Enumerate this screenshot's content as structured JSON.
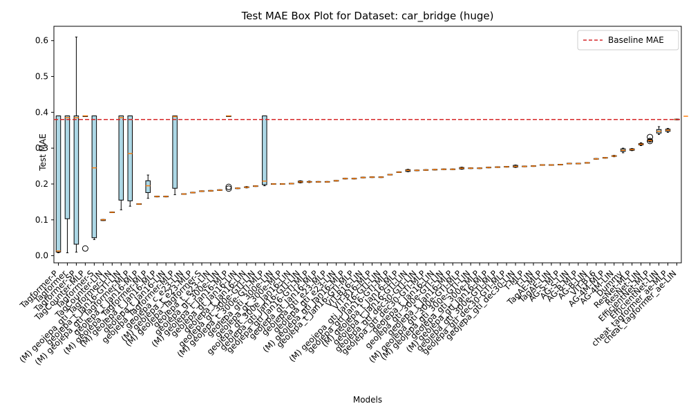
{
  "chart_data": {
    "type": "box",
    "title": "Test MAE Box Plot for Dataset: car_bridge (huge)",
    "xlabel": "Models",
    "ylabel": "Test MAE",
    "ylim": [
      -0.02,
      0.64
    ],
    "yticks": [
      "0.0",
      "0.1",
      "0.2",
      "0.3",
      "0.4",
      "0.5",
      "0.6"
    ],
    "ytick_values": [
      0.0,
      0.1,
      0.2,
      0.3,
      0.4,
      0.5,
      0.6
    ],
    "baseline": {
      "label": "Baseline MAE",
      "value": 0.38,
      "color": "#d62728"
    },
    "legend_position": "top-right",
    "box_fill": "#add8e6",
    "median_color": "#ff7f0e",
    "categories": [
      "Tagformer-P",
      "Tagformer",
      "Tagformer-SP",
      "TagCounter-MLP",
      "Tagformer-S",
      "TagCounter-LIN",
      "(M) geojepa_gti_Tagformer-LIN",
      "geojepa_t_Jan16-GTI-LIN",
      "(M) geojepa_gti_Tagformer-MLP",
      "geojepa_t_Jan16-MLP",
      "(M) geojepa_Tagformer-MLP",
      "(M) geojepa_t_Jan16-MLP",
      "geojepa_t_Jan16-LIN",
      "geojepa_Tagformer-MLP",
      "geojepa_c_e23-LIN",
      "(M) geojepa_t_e23-MLP",
      "(M) geojepa_Tagformer-S",
      "geojepa_t_e23-LIN",
      "geojepa_gt_300e-LIN",
      "(M) geojepa_t_Jan16-MLP",
      "geojepa_gt_Jan16-LIN",
      "geojepa_t_Jan16-LIN",
      "geojepa_gt_300e-GTI-LIN",
      "(M) geojepa_t_300e-GTI-MLP",
      "geojepa_gti_300e-LIN",
      "geojepa_gt_300e-MLP",
      "geojepa_gt_300e_Jan16-LIN",
      "geojepa_gti_Jan16-GTI-LIN",
      "geojepa_gti_Jan16-GTI-MLP",
      "geojepa_gt_Jan16-MLP",
      "geojepa_gti_e23-MLP",
      "geojepa_gti_e23-LIN",
      "(M) geojepa_gti_Jan16-MLP",
      "geojepa_t_Jan16-GTI-MLP",
      "VIT-B16-LIN",
      "VIT-B16-MLP",
      "(M) geojepa_gti_Jan16-GTI-LIN",
      "geojepa_gti_Jan16-GTI-MLP",
      "(M) geojepa_t_Jan16-MLP",
      "geojepa_t_Jan16-GTI-LIN",
      "geojepa_gti_dec30-GTI-LIN",
      "geojepa_gti_dec30-GTI-MLP",
      "geojepa_t_Jan16-LIN",
      "geojepa_gti_300e-GTI-LIN",
      "geojepa_t_Jan16-MLP",
      "(M) geojepa_gti_300e-GTI-MLP",
      "(M) geojepa_gti_300e-GTI-LIN",
      "geojepa_gti_300e-MLP",
      "(M) geojepa_gti_Jan16-MLP",
      "geojepa_gti_300e-GTI-MLP",
      "geojepa_gti_dec30-GTI-MLP",
      "geojepa_gti_dec30-LIN",
      "T-MLP",
      "T-LIN",
      "TagAE-MLP",
      "TagAE-LIN",
      "AG-S-MLP",
      "AG-S-LIN",
      "AG-B-MLP",
      "AG-B-LIN",
      "VIT-B16",
      "AG-4M-MLP",
      "AG-4M-LIN",
      "Dummy",
      "ResNet-MLP",
      "ResNet-LIN",
      "EfficientNet-MLP",
      "EfficientNet-LIN",
      "cheat_tagformer_ae-MLP",
      "cheat_tagformer_ae-LIN"
    ],
    "boxes": [
      {
        "q1": 0.01,
        "med": 0.013,
        "q3": 0.39,
        "wlo": 0.008,
        "whi": 0.39,
        "fliers": []
      },
      {
        "q1": 0.103,
        "med": 0.385,
        "q3": 0.39,
        "wlo": 0.008,
        "whi": 0.39,
        "fliers": []
      },
      {
        "q1": 0.032,
        "med": 0.385,
        "q3": 0.39,
        "wlo": 0.01,
        "whi": 0.61,
        "fliers": []
      },
      {
        "q1": 0.39,
        "med": 0.39,
        "q3": 0.39,
        "wlo": 0.39,
        "whi": 0.39,
        "fliers": [
          0.02
        ]
      },
      {
        "q1": 0.05,
        "med": 0.245,
        "q3": 0.39,
        "wlo": 0.045,
        "whi": 0.39,
        "fliers": []
      },
      {
        "q1": 0.098,
        "med": 0.1,
        "q3": 0.101,
        "wlo": 0.098,
        "whi": 0.101,
        "fliers": []
      },
      {
        "q1": 0.12,
        "med": 0.121,
        "q3": 0.122,
        "wlo": 0.12,
        "whi": 0.122,
        "fliers": []
      },
      {
        "q1": 0.155,
        "med": 0.385,
        "q3": 0.39,
        "wlo": 0.128,
        "whi": 0.39,
        "fliers": []
      },
      {
        "q1": 0.153,
        "med": 0.285,
        "q3": 0.39,
        "wlo": 0.138,
        "whi": 0.39,
        "fliers": []
      },
      {
        "q1": 0.143,
        "med": 0.144,
        "q3": 0.145,
        "wlo": 0.143,
        "whi": 0.145,
        "fliers": []
      },
      {
        "q1": 0.176,
        "med": 0.195,
        "q3": 0.209,
        "wlo": 0.16,
        "whi": 0.225,
        "fliers": []
      },
      {
        "q1": 0.164,
        "med": 0.165,
        "q3": 0.166,
        "wlo": 0.164,
        "whi": 0.166,
        "fliers": []
      },
      {
        "q1": 0.164,
        "med": 0.165,
        "q3": 0.166,
        "wlo": 0.164,
        "whi": 0.166,
        "fliers": []
      },
      {
        "q1": 0.188,
        "med": 0.388,
        "q3": 0.39,
        "wlo": 0.17,
        "whi": 0.39,
        "fliers": []
      },
      {
        "q1": 0.171,
        "med": 0.172,
        "q3": 0.173,
        "wlo": 0.171,
        "whi": 0.173,
        "fliers": []
      },
      {
        "q1": 0.175,
        "med": 0.176,
        "q3": 0.177,
        "wlo": 0.175,
        "whi": 0.177,
        "fliers": []
      },
      {
        "q1": 0.179,
        "med": 0.18,
        "q3": 0.181,
        "wlo": 0.179,
        "whi": 0.181,
        "fliers": []
      },
      {
        "q1": 0.18,
        "med": 0.181,
        "q3": 0.182,
        "wlo": 0.18,
        "whi": 0.182,
        "fliers": []
      },
      {
        "q1": 0.182,
        "med": 0.183,
        "q3": 0.184,
        "wlo": 0.182,
        "whi": 0.184,
        "fliers": []
      },
      {
        "q1": 0.39,
        "med": 0.39,
        "q3": 0.39,
        "wlo": 0.39,
        "whi": 0.39,
        "fliers": [
          0.187,
          0.192
        ]
      },
      {
        "q1": 0.187,
        "med": 0.188,
        "q3": 0.189,
        "wlo": 0.187,
        "whi": 0.189,
        "fliers": []
      },
      {
        "q1": 0.19,
        "med": 0.191,
        "q3": 0.192,
        "wlo": 0.189,
        "whi": 0.193,
        "fliers": []
      },
      {
        "q1": 0.193,
        "med": 0.194,
        "q3": 0.195,
        "wlo": 0.193,
        "whi": 0.195,
        "fliers": []
      },
      {
        "q1": 0.198,
        "med": 0.208,
        "q3": 0.39,
        "wlo": 0.195,
        "whi": 0.39,
        "fliers": []
      },
      {
        "q1": 0.199,
        "med": 0.2,
        "q3": 0.201,
        "wlo": 0.199,
        "whi": 0.201,
        "fliers": []
      },
      {
        "q1": 0.199,
        "med": 0.2,
        "q3": 0.201,
        "wlo": 0.199,
        "whi": 0.201,
        "fliers": []
      },
      {
        "q1": 0.2,
        "med": 0.201,
        "q3": 0.202,
        "wlo": 0.2,
        "whi": 0.202,
        "fliers": []
      },
      {
        "q1": 0.204,
        "med": 0.206,
        "q3": 0.208,
        "wlo": 0.203,
        "whi": 0.209,
        "fliers": []
      },
      {
        "q1": 0.205,
        "med": 0.206,
        "q3": 0.207,
        "wlo": 0.204,
        "whi": 0.208,
        "fliers": []
      },
      {
        "q1": 0.205,
        "med": 0.206,
        "q3": 0.207,
        "wlo": 0.205,
        "whi": 0.207,
        "fliers": []
      },
      {
        "q1": 0.205,
        "med": 0.206,
        "q3": 0.207,
        "wlo": 0.205,
        "whi": 0.207,
        "fliers": []
      },
      {
        "q1": 0.208,
        "med": 0.209,
        "q3": 0.21,
        "wlo": 0.208,
        "whi": 0.21,
        "fliers": []
      },
      {
        "q1": 0.214,
        "med": 0.215,
        "q3": 0.216,
        "wlo": 0.214,
        "whi": 0.216,
        "fliers": []
      },
      {
        "q1": 0.214,
        "med": 0.215,
        "q3": 0.216,
        "wlo": 0.214,
        "whi": 0.216,
        "fliers": []
      },
      {
        "q1": 0.217,
        "med": 0.218,
        "q3": 0.219,
        "wlo": 0.217,
        "whi": 0.219,
        "fliers": []
      },
      {
        "q1": 0.218,
        "med": 0.219,
        "q3": 0.22,
        "wlo": 0.218,
        "whi": 0.22,
        "fliers": []
      },
      {
        "q1": 0.218,
        "med": 0.219,
        "q3": 0.22,
        "wlo": 0.218,
        "whi": 0.22,
        "fliers": []
      },
      {
        "q1": 0.225,
        "med": 0.226,
        "q3": 0.227,
        "wlo": 0.225,
        "whi": 0.227,
        "fliers": []
      },
      {
        "q1": 0.232,
        "med": 0.233,
        "q3": 0.234,
        "wlo": 0.232,
        "whi": 0.234,
        "fliers": []
      },
      {
        "q1": 0.235,
        "med": 0.238,
        "q3": 0.24,
        "wlo": 0.234,
        "whi": 0.241,
        "fliers": []
      },
      {
        "q1": 0.237,
        "med": 0.238,
        "q3": 0.239,
        "wlo": 0.237,
        "whi": 0.239,
        "fliers": []
      },
      {
        "q1": 0.238,
        "med": 0.239,
        "q3": 0.24,
        "wlo": 0.238,
        "whi": 0.24,
        "fliers": []
      },
      {
        "q1": 0.239,
        "med": 0.24,
        "q3": 0.241,
        "wlo": 0.239,
        "whi": 0.241,
        "fliers": []
      },
      {
        "q1": 0.24,
        "med": 0.241,
        "q3": 0.242,
        "wlo": 0.24,
        "whi": 0.242,
        "fliers": []
      },
      {
        "q1": 0.24,
        "med": 0.241,
        "q3": 0.242,
        "wlo": 0.24,
        "whi": 0.242,
        "fliers": []
      },
      {
        "q1": 0.242,
        "med": 0.244,
        "q3": 0.246,
        "wlo": 0.241,
        "whi": 0.247,
        "fliers": []
      },
      {
        "q1": 0.243,
        "med": 0.244,
        "q3": 0.245,
        "wlo": 0.243,
        "whi": 0.245,
        "fliers": []
      },
      {
        "q1": 0.243,
        "med": 0.244,
        "q3": 0.245,
        "wlo": 0.243,
        "whi": 0.245,
        "fliers": []
      },
      {
        "q1": 0.245,
        "med": 0.246,
        "q3": 0.247,
        "wlo": 0.245,
        "whi": 0.247,
        "fliers": []
      },
      {
        "q1": 0.246,
        "med": 0.247,
        "q3": 0.248,
        "wlo": 0.246,
        "whi": 0.248,
        "fliers": []
      },
      {
        "q1": 0.247,
        "med": 0.248,
        "q3": 0.249,
        "wlo": 0.247,
        "whi": 0.249,
        "fliers": []
      },
      {
        "q1": 0.247,
        "med": 0.249,
        "q3": 0.252,
        "wlo": 0.246,
        "whi": 0.253,
        "fliers": []
      },
      {
        "q1": 0.248,
        "med": 0.249,
        "q3": 0.25,
        "wlo": 0.248,
        "whi": 0.25,
        "fliers": []
      },
      {
        "q1": 0.249,
        "med": 0.25,
        "q3": 0.251,
        "wlo": 0.249,
        "whi": 0.251,
        "fliers": []
      },
      {
        "q1": 0.252,
        "med": 0.253,
        "q3": 0.254,
        "wlo": 0.252,
        "whi": 0.254,
        "fliers": []
      },
      {
        "q1": 0.252,
        "med": 0.253,
        "q3": 0.254,
        "wlo": 0.252,
        "whi": 0.254,
        "fliers": []
      },
      {
        "q1": 0.253,
        "med": 0.254,
        "q3": 0.255,
        "wlo": 0.253,
        "whi": 0.255,
        "fliers": []
      },
      {
        "q1": 0.256,
        "med": 0.257,
        "q3": 0.258,
        "wlo": 0.256,
        "whi": 0.258,
        "fliers": []
      },
      {
        "q1": 0.256,
        "med": 0.257,
        "q3": 0.258,
        "wlo": 0.256,
        "whi": 0.258,
        "fliers": []
      },
      {
        "q1": 0.258,
        "med": 0.259,
        "q3": 0.26,
        "wlo": 0.258,
        "whi": 0.26,
        "fliers": []
      },
      {
        "q1": 0.269,
        "med": 0.27,
        "q3": 0.271,
        "wlo": 0.269,
        "whi": 0.271,
        "fliers": []
      },
      {
        "q1": 0.272,
        "med": 0.273,
        "q3": 0.274,
        "wlo": 0.272,
        "whi": 0.274,
        "fliers": []
      },
      {
        "q1": 0.277,
        "med": 0.278,
        "q3": 0.279,
        "wlo": 0.276,
        "whi": 0.28,
        "fliers": []
      },
      {
        "q1": 0.291,
        "med": 0.294,
        "q3": 0.298,
        "wlo": 0.287,
        "whi": 0.3,
        "fliers": []
      },
      {
        "q1": 0.294,
        "med": 0.296,
        "q3": 0.298,
        "wlo": 0.293,
        "whi": 0.299,
        "fliers": []
      },
      {
        "q1": 0.309,
        "med": 0.311,
        "q3": 0.313,
        "wlo": 0.307,
        "whi": 0.315,
        "fliers": []
      },
      {
        "q1": 0.319,
        "med": 0.321,
        "q3": 0.323,
        "wlo": 0.317,
        "whi": 0.325,
        "fliers": [
          0.331,
          0.32
        ]
      },
      {
        "q1": 0.342,
        "med": 0.347,
        "q3": 0.352,
        "wlo": 0.338,
        "whi": 0.36,
        "fliers": []
      },
      {
        "q1": 0.347,
        "med": 0.35,
        "q3": 0.353,
        "wlo": 0.344,
        "whi": 0.355,
        "fliers": []
      },
      {
        "q1": 0.379,
        "med": 0.38,
        "q3": 0.381,
        "wlo": 0.379,
        "whi": 0.381,
        "fliers": []
      }
    ],
    "tail_points": [
      0.389,
      0.389,
      0.389,
      0.389,
      0.389,
      0.389
    ]
  }
}
